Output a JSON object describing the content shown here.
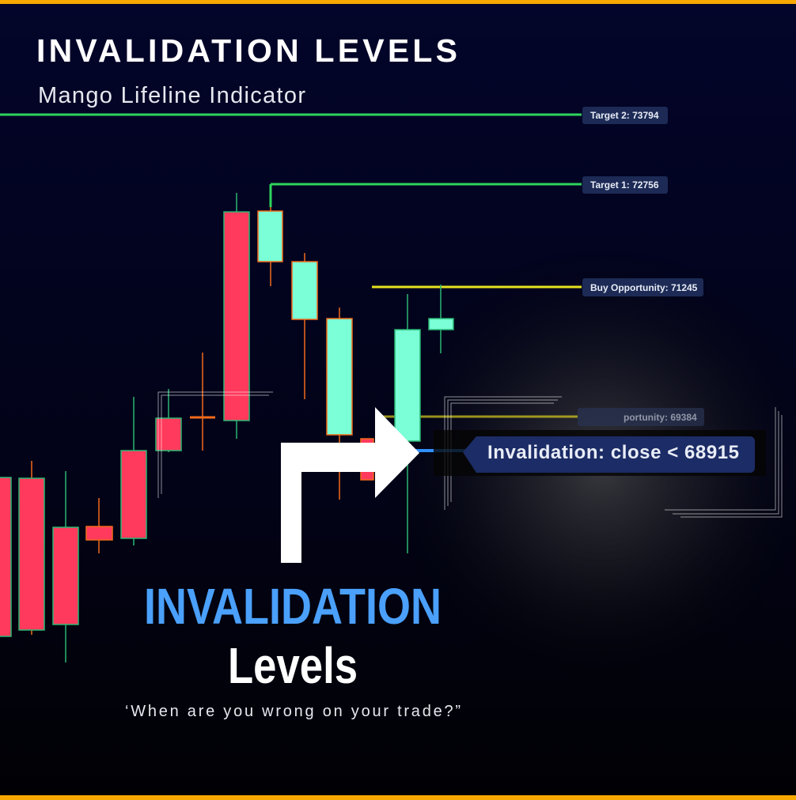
{
  "header": {
    "title": "INVALIDATION LEVELS",
    "subtitle": "Mango Lifeline Indicator"
  },
  "levels": [
    {
      "label": "Target 2: 73794"
    },
    {
      "label": "Target 1: 72756"
    },
    {
      "label": "Buy Opportunity: 71245"
    },
    {
      "label": "portunity: 69384"
    }
  ],
  "callout": {
    "label": "Invalidation: close < 68915"
  },
  "headline": {
    "line1": "INVALIDATION",
    "line2": "Levels",
    "tagline": "‘When are you wrong on your trade?”"
  }
}
